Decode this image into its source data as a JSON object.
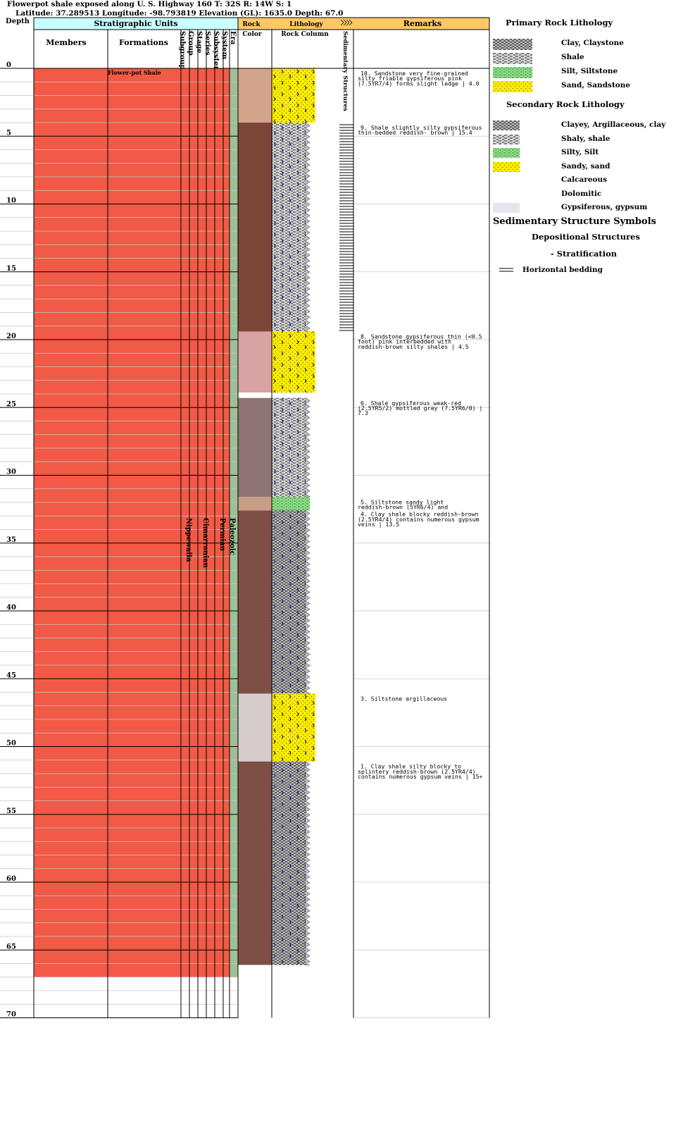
{
  "header": {
    "line1": "Flowerpot shale exposed along U. S. Highway 160 T: 32S R: 14W S: 1",
    "line2": "Latitude: 37.289513 Longitude: -98.793819 Elevation (GL): 1635.0 Depth: 67.0"
  },
  "columns": {
    "depth": "Depth",
    "strat_units": "Stratigraphic Units",
    "members": "Members",
    "formations": "Formations",
    "subgroup": "Subgroup",
    "group": "Group",
    "stage": "Stage",
    "series": "Series",
    "subsystem": "Subsystem",
    "system": "System",
    "era": "Era",
    "rock": "Rock",
    "color": "Color",
    "lithology": "Lithology",
    "rock_column": "Rock Column",
    "sedimentary_structures": "Sedimentary Structures",
    "remarks": "Remarks"
  },
  "depth_ticks": [
    "0",
    "5",
    "10",
    "15",
    "20",
    "25",
    "30",
    "35",
    "40",
    "45",
    "50",
    "55",
    "60",
    "65",
    "70"
  ],
  "strat": {
    "formation": "Flower-pot Shale",
    "group": "Nippewalla",
    "series": "Cimarronian",
    "system": "Permian",
    "era": "Paleozoic"
  },
  "beds": [
    {
      "top": 0,
      "base": 4,
      "lith": "sand",
      "color": "#d4a48a"
    },
    {
      "top": 4,
      "base": 19.4,
      "lith": "shale-silty",
      "color": "#7b4637"
    },
    {
      "top": 19.4,
      "base": 23.9,
      "lith": "sand",
      "color": "#d9a3a3"
    },
    {
      "top": 23.9,
      "base": 24.3,
      "lith": "none",
      "color": "#ffffff"
    },
    {
      "top": 24.3,
      "base": 31.6,
      "lith": "shale",
      "color": "#8e7472"
    },
    {
      "top": 31.6,
      "base": 32.6,
      "lith": "silt",
      "color": "#c89e86"
    },
    {
      "top": 32.6,
      "base": 46.1,
      "lith": "clay",
      "color": "#7d4f45"
    },
    {
      "top": 46.1,
      "base": 51.1,
      "lith": "sand",
      "color": "#d6ccce"
    },
    {
      "top": 51.1,
      "base": 66.1,
      "lith": "clay",
      "color": "#7d4f45"
    }
  ],
  "remarks": [
    {
      "depth": 0.0,
      "text": "10. Sandstone very fine-grained silty friable gypsiferous pink (7.5YR7/4) forms slight ledge | 4.0"
    },
    {
      "depth": 4.0,
      "text": "9. Shale slightly silty gypsiferous thin-bedded reddish- brown | 15.4"
    },
    {
      "depth": 19.4,
      "text": "8. Sandstone gypsiferous thin (<0.5 foot) pink interbedded with reddish-brown silty shales | 4.5"
    },
    {
      "depth": 24.3,
      "text": "6. Shale gypsiferous weak-red (2.5YR5/2) mottled gray (7.5YR6/0) | 7.3"
    },
    {
      "depth": 31.6,
      "text": "5. Siltstone sandy light reddish-brown (5YR6/4) and"
    },
    {
      "depth": 32.6,
      "text": "4. Clay shale blocky reddish-brown (2.5YR4/4) contains numerous gypsum veins | 13.5"
    },
    {
      "depth": 46.1,
      "text": "3. Siltstone argillaceous"
    },
    {
      "depth": 51.1,
      "text": "1. Clay shale silty blocky to splintery reddish-brown (2.5YR4/4) contains numerous gypsum veins | 15+"
    }
  ],
  "legend": {
    "primary_title": "Primary Rock Lithology",
    "primary": [
      "Clay, Claystone",
      "Shale",
      "Silt, Siltstone",
      "Sand, Sandstone"
    ],
    "secondary_title": "Secondary Rock Lithology",
    "secondary": [
      "Clayey, Argillaceous, clay",
      "Shaly, shale",
      "Silty, Silt",
      "Sandy, sand",
      "Calcareous",
      "Dolomitic",
      "Gypsiferous, gypsum"
    ],
    "sed_title": "Sedimentary Structure Symbols",
    "dep_title": "Depositional Structures",
    "strat_title": "- Stratification",
    "horizontal": "Horizontal bedding"
  },
  "colors": {
    "strat_fill": "#f05a46",
    "header_cyan": "#c8ffff",
    "header_gold": "#ffc864",
    "era_green": "#9fbf97",
    "sand_yellow": "#ffee00",
    "silt_green": "#8fe08a"
  }
}
